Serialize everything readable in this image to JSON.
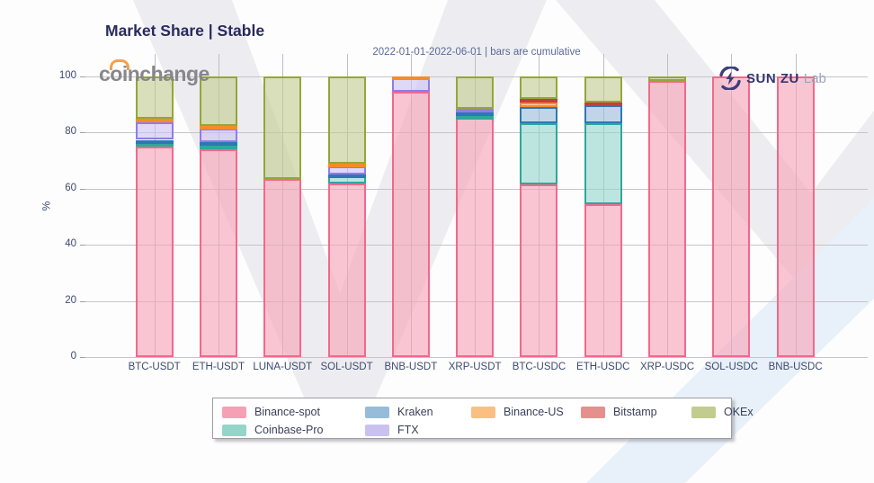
{
  "header": {
    "title": "Market Share | Stable",
    "subtitle": "2022-01-01-2022-06-01 | bars are cumulative"
  },
  "branding": {
    "coinchange": "coinchange",
    "sunzu": "SUN ZU",
    "lab": "Lab"
  },
  "chart_data": {
    "type": "bar",
    "stacked": true,
    "title": "Market Share | Stable",
    "subtitle": "2022-01-01-2022-06-01 | bars are cumulative",
    "xlabel": "",
    "ylabel": "%",
    "ylim": [
      0,
      100
    ],
    "yticks": [
      0,
      20,
      40,
      60,
      80,
      100
    ],
    "grid": true,
    "categories": [
      "BTC-USDT",
      "ETH-USDT",
      "LUNA-USDT",
      "SOL-USDT",
      "BNB-USDT",
      "XRP-USDT",
      "BTC-USDC",
      "ETH-USDC",
      "XRP-USDC",
      "SOL-USDC",
      "BNB-USDC"
    ],
    "series": [
      {
        "name": "Binance-spot",
        "fill": "#f6a0b5",
        "border": "#f4688a",
        "values": [
          75,
          74,
          63.5,
          62,
          94.5,
          85.5,
          61.5,
          54.5,
          98.5,
          100,
          100
        ]
      },
      {
        "name": "Coinbase-Pro",
        "fill": "#93d5c9",
        "border": "#2fa79b",
        "values": [
          1.2,
          1.3,
          0,
          2.5,
          0,
          0.5,
          21.8,
          28.8,
          0,
          0,
          0
        ]
      },
      {
        "name": "Kraken",
        "fill": "#97bcd9",
        "border": "#2e77b5",
        "values": [
          1.2,
          1.2,
          0,
          0.5,
          0,
          1.2,
          5.8,
          6.4,
          0,
          0,
          0
        ]
      },
      {
        "name": "FTX",
        "fill": "#c9c2f0",
        "border": "#8f7ce8",
        "values": [
          6.3,
          5,
          0,
          3,
          4.8,
          1.3,
          0,
          0,
          0,
          0,
          0
        ]
      },
      {
        "name": "Binance-US",
        "fill": "#fac083",
        "border": "#f68b28",
        "values": [
          1.3,
          1,
          0,
          1,
          0.7,
          0,
          1.7,
          0,
          0,
          0,
          0
        ]
      },
      {
        "name": "Bitstamp",
        "fill": "#e58f8f",
        "border": "#cb3b3b",
        "values": [
          0,
          0,
          0,
          0,
          0,
          0,
          1.2,
          1,
          0,
          0,
          0
        ]
      },
      {
        "name": "OKEx",
        "fill": "#c2cc8e",
        "border": "#94a637",
        "values": [
          15,
          17.5,
          36.5,
          31,
          0,
          11.5,
          8,
          9.3,
          1.5,
          0,
          0
        ]
      }
    ],
    "legend": {
      "position": "bottom",
      "rows": [
        [
          "Binance-spot",
          "Kraken",
          "Binance-US",
          "Bitstamp",
          "OKEx"
        ],
        [
          "Coinbase-Pro",
          "FTX"
        ]
      ]
    }
  }
}
